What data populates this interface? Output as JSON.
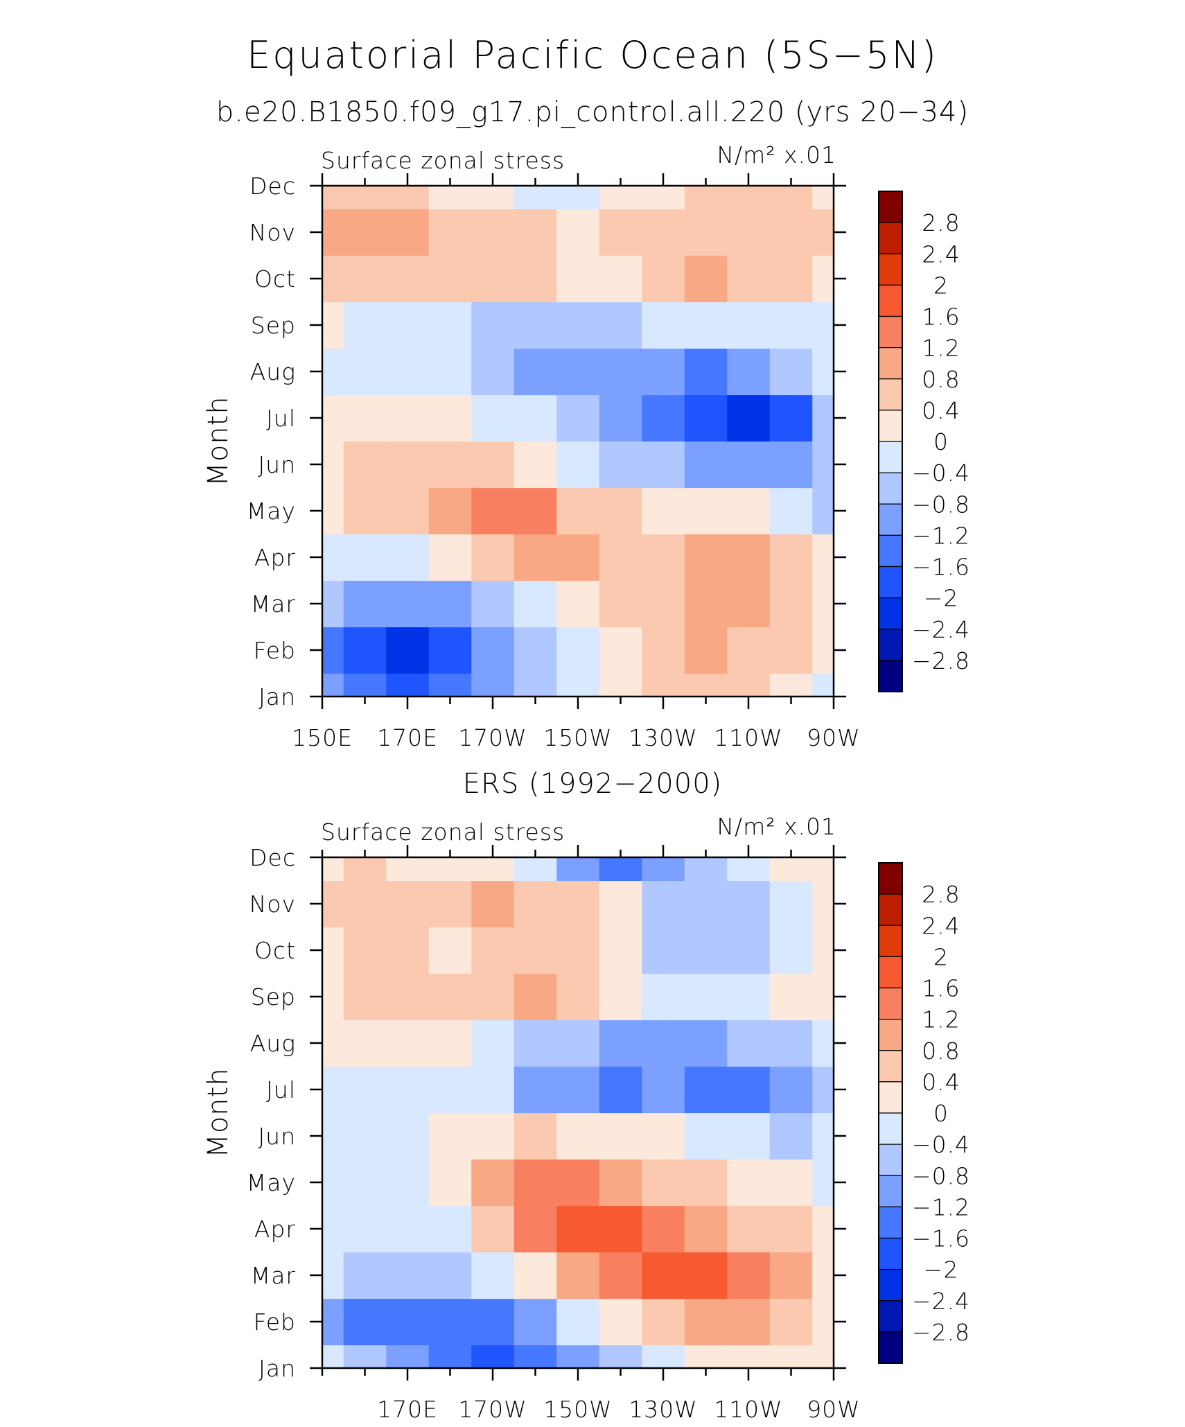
{
  "title": "Equatorial Pacific Ocean (5S−5N)",
  "colors": {
    "ramp": [
      "#000080",
      "#0019b4",
      "#0032e6",
      "#1e55ff",
      "#4678ff",
      "#7ca0ff",
      "#b0c8ff",
      "#d8e8ff",
      "#fde8dc",
      "#fbc8b0",
      "#f9a886",
      "#f88060",
      "#f75a30",
      "#e03c0a",
      "#be1e00",
      "#800000"
    ],
    "axis": "#000000",
    "background": "#ffffff"
  },
  "colorbar": {
    "levels": [
      -3.2,
      -2.8,
      -2.4,
      -2.0,
      -1.6,
      -1.2,
      -0.8,
      -0.4,
      0,
      0.4,
      0.8,
      1.2,
      1.6,
      2.0,
      2.4,
      2.8,
      3.2
    ],
    "labels": [
      "2.8",
      "2.4",
      "2",
      "1.6",
      "1.2",
      "0.8",
      "0.4",
      "0",
      "−0.4",
      "−0.8",
      "−1.2",
      "−1.6",
      "−2",
      "−2.4",
      "−2.8"
    ]
  },
  "chart_data": [
    {
      "type": "heatmap",
      "title": "b.e20.B1850.f09_g17.pi_control.all.220 (yrs 20−34)",
      "left_label": "Surface zonal stress",
      "right_label": "N/m² x.01",
      "ylabel": "Month",
      "xlabel": "",
      "xlim": [
        150,
        270
      ],
      "x_ticks": [
        150,
        170,
        190,
        210,
        230,
        250,
        270
      ],
      "x_tick_labels": [
        "150E",
        "170E",
        "170W",
        "150W",
        "130W",
        "110W",
        "90W"
      ],
      "y_tick_labels": [
        "Jan",
        "Feb",
        "Mar",
        "Apr",
        "May",
        "Jun",
        "Jul",
        "Aug",
        "Sep",
        "Oct",
        "Nov",
        "Dec"
      ],
      "x": [
        150,
        160,
        170,
        180,
        190,
        200,
        210,
        220,
        230,
        240,
        250,
        260,
        270
      ],
      "months": [
        "Jan",
        "Feb",
        "Mar",
        "Apr",
        "May",
        "Jun",
        "Jul",
        "Aug",
        "Sep",
        "Oct",
        "Nov",
        "Dec"
      ],
      "z": [
        [
          -1.2,
          -1.6,
          -1.7,
          -1.4,
          -1.0,
          -0.6,
          -0.2,
          0.2,
          0.4,
          0.5,
          0.5,
          0.3,
          -0.1
        ],
        [
          -1.3,
          -1.9,
          -2.1,
          -1.7,
          -1.1,
          -0.6,
          -0.2,
          0.2,
          0.5,
          0.8,
          0.7,
          0.4,
          0.0
        ],
        [
          -0.8,
          -1.2,
          -1.2,
          -0.9,
          -0.5,
          -0.1,
          0.2,
          0.5,
          0.6,
          1.0,
          1.0,
          0.6,
          0.1
        ],
        [
          -0.3,
          -0.4,
          -0.2,
          0.1,
          0.5,
          0.8,
          1.0,
          0.6,
          0.6,
          1.0,
          1.0,
          0.5,
          0.1
        ],
        [
          0.3,
          0.4,
          0.6,
          0.9,
          1.3,
          1.4,
          0.7,
          0.4,
          0.2,
          0.1,
          0.0,
          -0.2,
          -0.5
        ],
        [
          0.3,
          0.5,
          0.6,
          0.7,
          0.5,
          0.2,
          -0.1,
          -0.5,
          -0.8,
          -1.1,
          -1.2,
          -1.0,
          -0.6
        ],
        [
          0.2,
          0.3,
          0.3,
          0.1,
          -0.1,
          -0.4,
          -0.8,
          -1.0,
          -1.6,
          -2.0,
          -2.1,
          -1.7,
          -0.6
        ],
        [
          -0.1,
          -0.2,
          -0.2,
          -0.3,
          -0.5,
          -0.9,
          -1.0,
          -1.2,
          -1.2,
          -1.4,
          -1.2,
          -0.8,
          -0.4
        ],
        [
          0.0,
          -0.1,
          -0.2,
          -0.3,
          -0.6,
          -0.8,
          -0.6,
          -0.5,
          -0.4,
          -0.3,
          -0.3,
          -0.3,
          -0.1
        ],
        [
          0.6,
          0.7,
          0.7,
          0.5,
          0.5,
          0.4,
          0.1,
          0.3,
          0.5,
          0.8,
          0.6,
          0.5,
          0.2
        ],
        [
          1.0,
          1.0,
          0.9,
          0.6,
          0.6,
          0.5,
          0.1,
          0.6,
          0.7,
          0.6,
          0.6,
          0.6,
          0.4
        ],
        [
          0.6,
          0.7,
          0.4,
          0.2,
          0.0,
          -0.1,
          -0.1,
          0.1,
          0.3,
          0.4,
          0.4,
          0.4,
          0.2
        ]
      ]
    },
    {
      "type": "heatmap",
      "title": "ERS (1992−2000)",
      "left_label": "Surface zonal stress",
      "right_label": "N/m² x.01",
      "ylabel": "Month",
      "xlabel": "",
      "xlim": [
        150,
        270
      ],
      "x_ticks": [
        170,
        190,
        210,
        230,
        250,
        270
      ],
      "x_tick_labels": [
        "170E",
        "170W",
        "150W",
        "130W",
        "110W",
        "90W"
      ],
      "y_tick_labels": [
        "Jan",
        "Feb",
        "Mar",
        "Apr",
        "May",
        "Jun",
        "Jul",
        "Aug",
        "Sep",
        "Oct",
        "Nov",
        "Dec"
      ],
      "x": [
        150,
        160,
        170,
        180,
        190,
        200,
        210,
        220,
        230,
        240,
        250,
        260,
        270
      ],
      "months": [
        "Jan",
        "Feb",
        "Mar",
        "Apr",
        "May",
        "Jun",
        "Jul",
        "Aug",
        "Sep",
        "Oct",
        "Nov",
        "Dec"
      ],
      "z": [
        [
          -0.4,
          -0.8,
          -1.2,
          -1.5,
          -1.8,
          -1.5,
          -1.0,
          -0.5,
          -0.1,
          0.2,
          0.3,
          0.2,
          0.0
        ],
        [
          -1.0,
          -1.6,
          -1.6,
          -1.6,
          -1.4,
          -0.9,
          -0.3,
          0.3,
          0.7,
          1.0,
          1.0,
          0.7,
          0.2
        ],
        [
          -0.4,
          -0.7,
          -0.7,
          -0.7,
          -0.4,
          0.1,
          0.8,
          1.3,
          1.8,
          1.9,
          1.3,
          0.8,
          0.2
        ],
        [
          -0.2,
          -0.3,
          -0.3,
          -0.1,
          0.4,
          1.2,
          1.7,
          1.6,
          1.2,
          0.9,
          0.6,
          0.4,
          0.1
        ],
        [
          -0.2,
          -0.2,
          -0.1,
          0.2,
          1.0,
          1.5,
          1.3,
          1.0,
          0.6,
          0.4,
          0.3,
          0.2,
          -0.1
        ],
        [
          -0.4,
          -0.2,
          -0.1,
          0.0,
          0.2,
          0.4,
          0.3,
          0.2,
          0.0,
          -0.2,
          -0.3,
          -0.5,
          -0.3
        ],
        [
          -0.2,
          -0.1,
          -0.1,
          -0.2,
          -0.4,
          -0.9,
          -1.2,
          -1.6,
          -1.2,
          -1.6,
          -1.6,
          -1.2,
          -0.7
        ],
        [
          0.2,
          0.2,
          0.1,
          0.0,
          -0.3,
          -0.6,
          -0.8,
          -0.9,
          -1.0,
          -1.0,
          -0.8,
          -0.5,
          -0.2
        ],
        [
          0.3,
          0.4,
          0.4,
          0.4,
          0.5,
          0.8,
          0.5,
          0.2,
          -0.1,
          -0.2,
          -0.1,
          0.0,
          0.2
        ],
        [
          0.3,
          0.4,
          0.4,
          0.3,
          0.6,
          0.5,
          0.4,
          0.1,
          -0.5,
          -0.8,
          -0.6,
          -0.2,
          0.3
        ],
        [
          0.4,
          0.4,
          0.4,
          0.7,
          1.0,
          0.6,
          0.4,
          0.0,
          -0.6,
          -0.8,
          -0.7,
          -0.2,
          0.1
        ],
        [
          0.2,
          0.4,
          0.2,
          0.2,
          0.1,
          -0.4,
          -1.2,
          -1.6,
          -1.1,
          -0.5,
          -0.2,
          0.1,
          0.2
        ]
      ]
    }
  ]
}
